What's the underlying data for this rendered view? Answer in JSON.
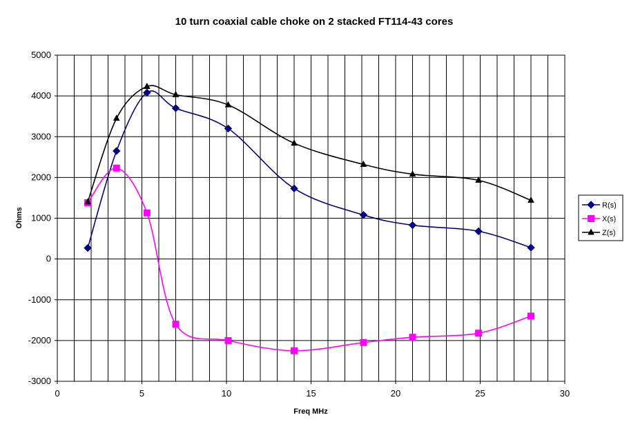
{
  "chart_data": {
    "type": "line",
    "title": "10 turn coaxial cable choke on 2 stacked FT114-43 cores",
    "xlabel": "Freq MHz",
    "ylabel": "Ohms",
    "xlim": [
      0,
      30
    ],
    "ylim": [
      -3000,
      5000
    ],
    "x_ticks": [
      0,
      5,
      10,
      15,
      20,
      25,
      30
    ],
    "y_ticks": [
      -3000,
      -2000,
      -1000,
      0,
      1000,
      2000,
      3000,
      4000,
      5000
    ],
    "x_tick_labels": [
      "0",
      "5",
      "10",
      "15",
      "20",
      "25",
      "30"
    ],
    "y_tick_labels": [
      "-3000",
      "-2000",
      "-1000",
      "0",
      "1000",
      "2000",
      "3000",
      "4000",
      "5000"
    ],
    "grid": true,
    "legend_position": "right",
    "x": [
      1.8,
      3.5,
      5.3,
      7.0,
      10.1,
      14.0,
      18.1,
      21.0,
      24.9,
      28.0
    ],
    "series": [
      {
        "name": "R(s)",
        "color": "#000080",
        "marker": "diamond",
        "values": [
          270,
          2650,
          4080,
          3700,
          3200,
          1730,
          1080,
          830,
          680,
          280
        ]
      },
      {
        "name": "X(s)",
        "color": "#ff00ff",
        "marker": "square",
        "values": [
          1380,
          2230,
          1130,
          -1600,
          -2000,
          -2250,
          -2050,
          -1920,
          -1820,
          -1400
        ]
      },
      {
        "name": "Z(s)",
        "color": "#000000",
        "marker": "triangle",
        "values": [
          1400,
          3450,
          4230,
          4030,
          3780,
          2840,
          2320,
          2080,
          1930,
          1440
        ]
      }
    ]
  }
}
